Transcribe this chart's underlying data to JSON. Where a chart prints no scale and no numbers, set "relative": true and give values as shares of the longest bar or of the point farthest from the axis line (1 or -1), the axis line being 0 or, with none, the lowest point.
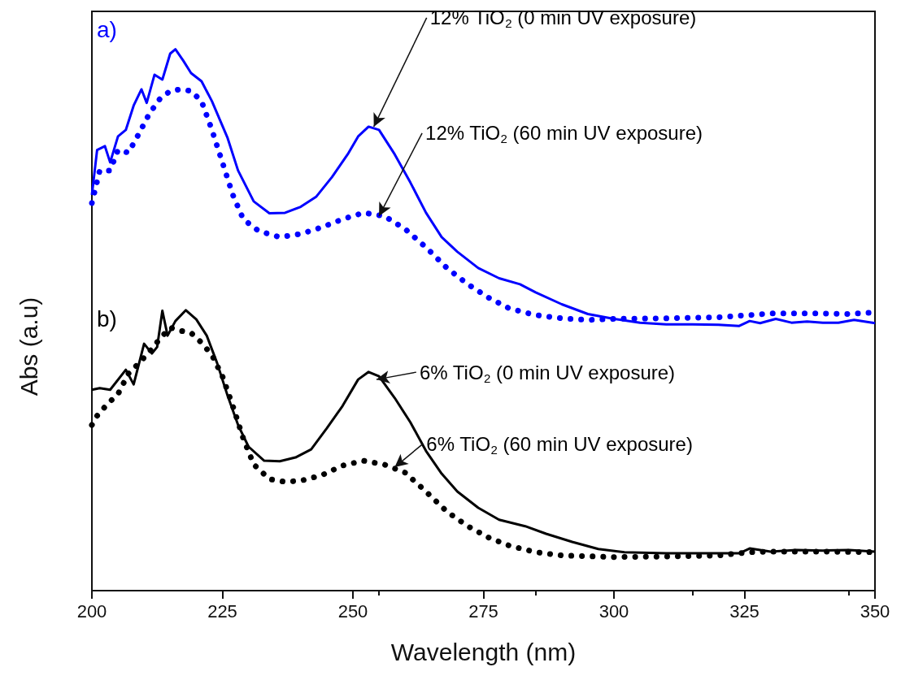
{
  "chart_data": {
    "type": "line",
    "relative": true,
    "xlabel": "Wavelength (nm)",
    "ylabel": "Abs (a.u)",
    "xlim": [
      200,
      350
    ],
    "xticks": [
      200,
      225,
      250,
      275,
      300,
      325,
      350
    ],
    "grid": false,
    "series": [
      {
        "color": "#0000ff",
        "line_style": "solid",
        "x": [
          200,
          201,
          202.5,
          203.5,
          205,
          206.5,
          208,
          209.5,
          210.5,
          212,
          213.5,
          215,
          216,
          217.5,
          219,
          221,
          223,
          226,
          228,
          231,
          234,
          237,
          240,
          243,
          246,
          249,
          251,
          253,
          255,
          258,
          261,
          264,
          267,
          270,
          274,
          278,
          282,
          285,
          290,
          295,
          300,
          305,
          310,
          315,
          320,
          324,
          326,
          328,
          331,
          334,
          337,
          340,
          343,
          346,
          350
        ],
        "values": [
          0.731,
          0.814,
          0.821,
          0.791,
          0.839,
          0.851,
          0.896,
          0.926,
          0.901,
          0.953,
          0.944,
          0.992,
          1.0,
          0.979,
          0.956,
          0.941,
          0.904,
          0.836,
          0.776,
          0.719,
          0.697,
          0.698,
          0.709,
          0.728,
          0.764,
          0.806,
          0.839,
          0.857,
          0.851,
          0.806,
          0.754,
          0.698,
          0.653,
          0.626,
          0.596,
          0.577,
          0.566,
          0.551,
          0.529,
          0.511,
          0.502,
          0.495,
          0.492,
          0.492,
          0.491,
          0.489,
          0.498,
          0.494,
          0.502,
          0.495,
          0.497,
          0.495,
          0.495,
          0.5,
          0.494
        ]
      },
      {
        "color": "#0000ff",
        "line_style": "dotted",
        "x": [
          200,
          201.5,
          203.5,
          205,
          207,
          209,
          211,
          213,
          215,
          217,
          219,
          221,
          223,
          225,
          227,
          229,
          232,
          236,
          240,
          244,
          248,
          252,
          256,
          260,
          264,
          268,
          272,
          276,
          280,
          285,
          290,
          295,
          300,
          310,
          320,
          326,
          330,
          336,
          340,
          345,
          350
        ],
        "values": [
          0.716,
          0.776,
          0.776,
          0.814,
          0.809,
          0.844,
          0.881,
          0.908,
          0.923,
          0.926,
          0.923,
          0.904,
          0.851,
          0.791,
          0.731,
          0.686,
          0.664,
          0.653,
          0.659,
          0.671,
          0.686,
          0.698,
          0.692,
          0.668,
          0.634,
          0.596,
          0.566,
          0.541,
          0.521,
          0.509,
          0.503,
          0.5,
          0.502,
          0.503,
          0.505,
          0.509,
          0.512,
          0.512,
          0.512,
          0.511,
          0.514
        ]
      },
      {
        "color": "#000000",
        "line_style": "solid",
        "x": [
          200,
          201.5,
          203.5,
          206.5,
          208,
          210,
          211.5,
          212.5,
          213.5,
          214.5,
          216,
          218,
          220,
          222,
          224,
          226,
          228,
          230,
          233,
          236,
          239,
          242,
          245,
          248,
          251,
          253,
          255,
          258,
          261,
          264,
          267,
          270,
          274,
          278,
          283,
          287,
          292,
          297,
          302,
          310,
          320,
          324,
          326,
          330,
          335,
          340,
          345,
          350
        ],
        "values": [
          0.371,
          0.374,
          0.371,
          0.408,
          0.381,
          0.456,
          0.438,
          0.45,
          0.517,
          0.471,
          0.498,
          0.518,
          0.501,
          0.471,
          0.42,
          0.36,
          0.306,
          0.266,
          0.24,
          0.239,
          0.246,
          0.261,
          0.3,
          0.341,
          0.39,
          0.404,
          0.396,
          0.356,
          0.311,
          0.258,
          0.216,
          0.183,
          0.153,
          0.131,
          0.119,
          0.105,
          0.09,
          0.077,
          0.071,
          0.069,
          0.069,
          0.069,
          0.078,
          0.072,
          0.075,
          0.074,
          0.075,
          0.072
        ]
      },
      {
        "color": "#000000",
        "line_style": "dotted",
        "x": [
          200,
          201,
          203,
          205,
          207,
          209,
          211,
          213,
          215,
          217,
          219,
          221,
          223,
          225,
          227,
          229,
          231,
          234,
          237,
          240,
          244,
          248,
          252,
          256,
          260,
          264,
          268,
          272,
          276,
          280,
          285,
          290,
          300,
          310,
          320,
          326,
          330,
          340,
          350
        ],
        "values": [
          0.306,
          0.323,
          0.345,
          0.363,
          0.401,
          0.42,
          0.441,
          0.465,
          0.486,
          0.48,
          0.476,
          0.458,
          0.435,
          0.396,
          0.341,
          0.281,
          0.233,
          0.206,
          0.201,
          0.203,
          0.213,
          0.231,
          0.24,
          0.233,
          0.218,
          0.183,
          0.146,
          0.119,
          0.098,
          0.083,
          0.071,
          0.065,
          0.062,
          0.063,
          0.065,
          0.071,
          0.072,
          0.072,
          0.071
        ]
      }
    ],
    "annotations": [
      "a)",
      "b)",
      {
        "text": "12% TiO$_{2}$ (0 min UV exposure)",
        "x": 254,
        "y": 0.857
      },
      {
        "text": "12% TiO$_{2}$ (60 min UV exposure)",
        "x": 255,
        "y": 0.692
      },
      {
        "text": "6% TiO$_{2}$ (0 min UV exposure)",
        "x": 254.5,
        "y": 0.39
      },
      {
        "text": "6% TiO$_{2}$ (60 min UV exposure)",
        "x": 258,
        "y": 0.228
      }
    ]
  }
}
